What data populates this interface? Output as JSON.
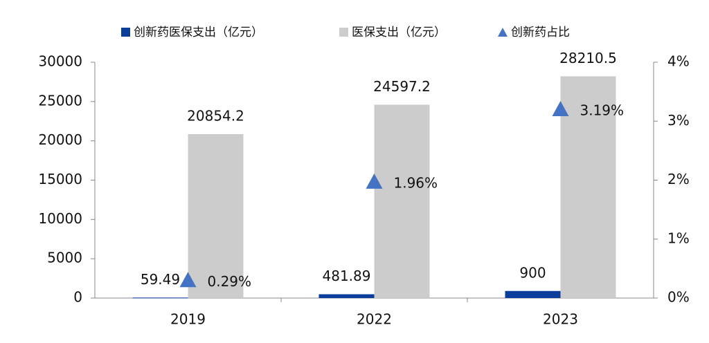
{
  "chart_data": {
    "type": "bar",
    "categories": [
      "2019",
      "2022",
      "2023"
    ],
    "series": [
      {
        "name": "创新药医保支出（亿元）",
        "color": "#0a3d9c",
        "values": [
          59.49,
          481.89,
          900
        ]
      },
      {
        "name": "医保支出（亿元）",
        "color": "#cccccc",
        "values": [
          20854.2,
          24597.2,
          28210.5
        ]
      },
      {
        "name": "创新药占比",
        "color": "#4472c4",
        "type": "scatter",
        "marker": "triangle",
        "axis": "y2",
        "values": [
          0.29,
          1.96,
          3.19
        ],
        "value_labels": [
          "0.29%",
          "1.96%",
          "3.19%"
        ]
      }
    ],
    "ylim": [
      0,
      30000
    ],
    "yticks": [
      0,
      5000,
      10000,
      15000,
      20000,
      25000,
      30000
    ],
    "y2lim": [
      0,
      4
    ],
    "y2ticks": [
      {
        "value": 0,
        "label": "0%"
      },
      {
        "value": 1,
        "label": "1%"
      },
      {
        "value": 2,
        "label": "2%"
      },
      {
        "value": 3,
        "label": "3%"
      },
      {
        "value": 4,
        "label": "4%"
      }
    ],
    "legend": "top"
  }
}
